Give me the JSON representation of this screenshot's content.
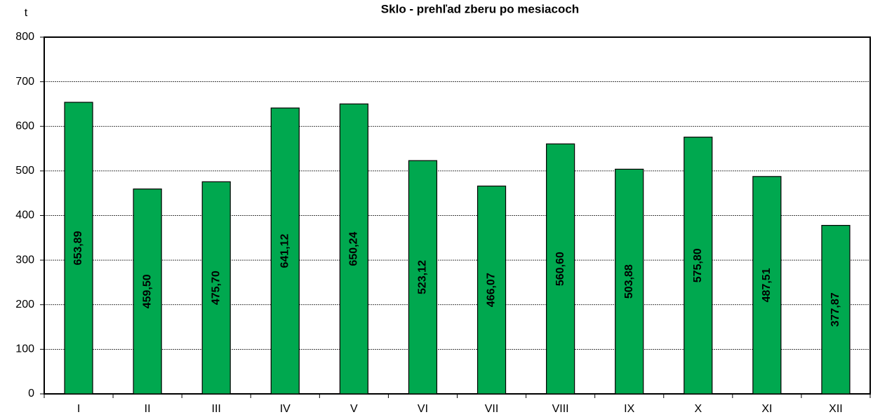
{
  "chart_data": {
    "type": "bar",
    "title": "Sklo - prehľad zberu po mesiacoch",
    "y_label": "t",
    "categories": [
      "I",
      "II",
      "III",
      "IV",
      "V",
      "VI",
      "VII",
      "VIII",
      "IX",
      "X",
      "XI",
      "XII"
    ],
    "values": [
      653.89,
      459.5,
      475.7,
      641.12,
      650.24,
      523.12,
      466.07,
      560.6,
      503.88,
      575.8,
      487.51,
      377.87
    ],
    "value_labels": [
      "653,89",
      "459,50",
      "475,70",
      "641,12",
      "650,24",
      "523,12",
      "466,07",
      "560,60",
      "503,88",
      "575,80",
      "487,51",
      "377,87"
    ],
    "color": "#00a84f",
    "ylim": [
      0,
      800
    ],
    "yticks": [
      0,
      100,
      200,
      300,
      400,
      500,
      600,
      700,
      800
    ],
    "grid": true
  }
}
